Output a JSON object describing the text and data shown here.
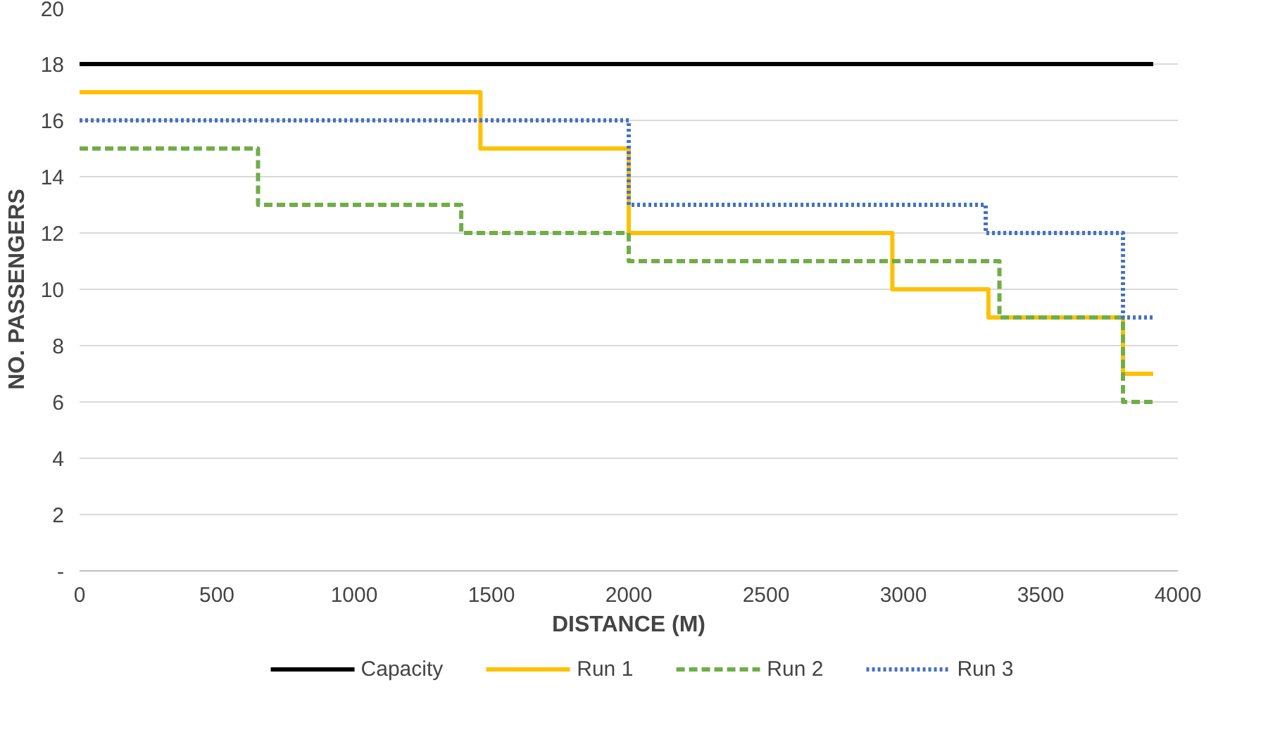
{
  "chart_data": {
    "type": "step",
    "xlabel": "DISTANCE (M)",
    "ylabel": "NO. PASSENGERS",
    "xlim": [
      0,
      4000
    ],
    "xticks": [
      0,
      500,
      1000,
      1500,
      2000,
      2500,
      3000,
      3500,
      4000
    ],
    "ylim": [
      0,
      20
    ],
    "yticks": [
      {
        "value": 0,
        "label": "-"
      },
      2,
      4,
      6,
      8,
      10,
      12,
      14,
      16,
      18,
      20
    ],
    "grid": "y",
    "legend": "bottom",
    "series": [
      {
        "name": "Capacity",
        "color": "#000000",
        "line_style": "solid",
        "x": [
          0,
          3910
        ],
        "values": [
          18,
          18
        ]
      },
      {
        "name": "Run 1",
        "color": "#ffc000",
        "line_style": "solid",
        "x": [
          0,
          1460,
          2000,
          2960,
          3310,
          3800,
          3910
        ],
        "values": [
          17,
          15,
          12,
          10,
          9,
          7,
          7
        ]
      },
      {
        "name": "Run 2",
        "color": "#70ad47",
        "line_style": "dashed",
        "x": [
          0,
          650,
          1390,
          2000,
          3350,
          3800,
          3910
        ],
        "values": [
          15,
          13,
          12,
          11,
          9,
          6,
          6
        ]
      },
      {
        "name": "Run 3",
        "color": "#4472c4",
        "line_style": "dotted",
        "x": [
          0,
          2000,
          3300,
          3800,
          3910
        ],
        "values": [
          16,
          13,
          12,
          9,
          9
        ]
      }
    ]
  }
}
